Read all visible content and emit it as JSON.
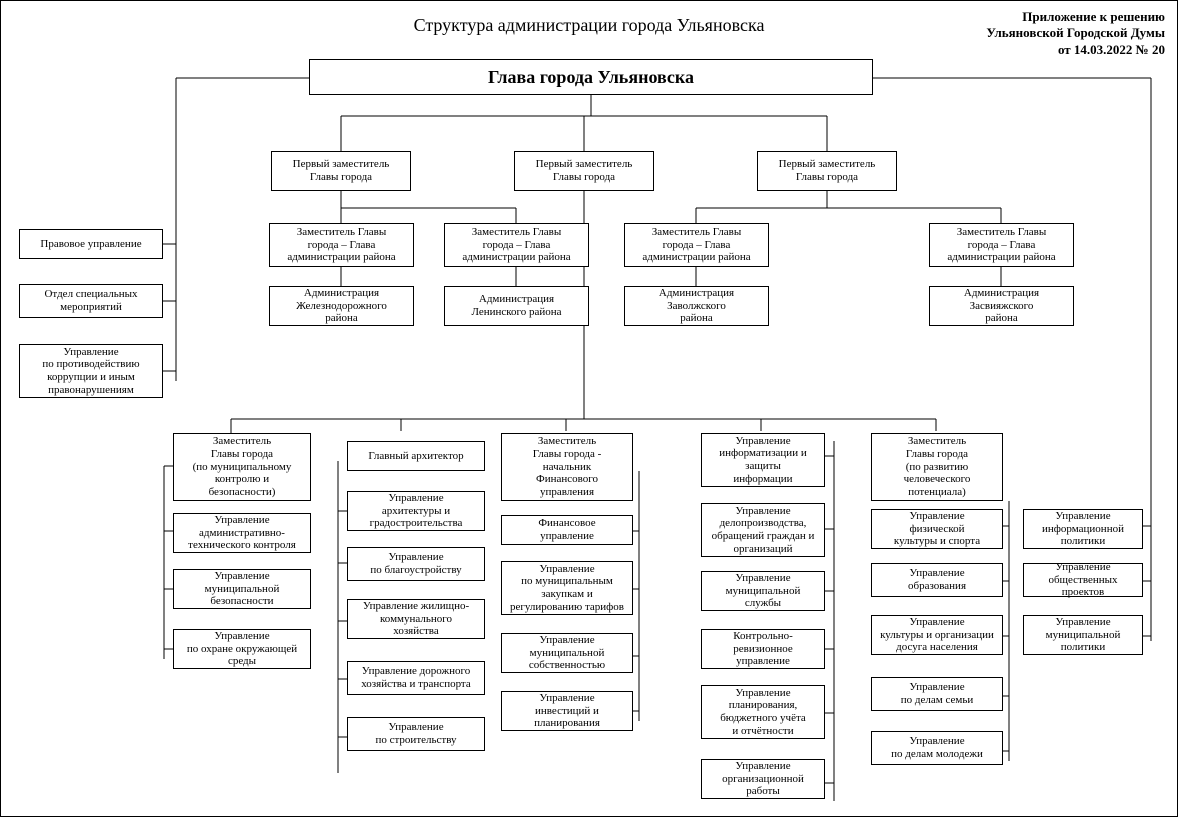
{
  "document": {
    "title": "Структура администрации города Ульяновска",
    "attachment_line1": "Приложение к решению",
    "attachment_line2": "Ульяновской Городской Думы",
    "attachment_line3": "от 14.03.2022 № 20"
  },
  "chart": {
    "type": "org-chart",
    "background_color": "#ffffff",
    "border_color": "#000000",
    "text_color": "#000000",
    "font_family": "Times New Roman",
    "node_border_width": 1,
    "connector_width": 1
  },
  "nodes": {
    "head": "Глава города Ульяновска",
    "deputy1": "Первый заместитель\nГлавы  города",
    "deputy2": "Первый заместитель\nГлавы  города",
    "deputy3": "Первый заместитель\nГлавы  города",
    "sub_rail_head": "Заместитель Главы\nгорода – Глава\nадминистрации района",
    "sub_rail_admin": "Администрация\nЖелезнодорожного\nрайона",
    "sub_lenin_head": "Заместитель Главы\nгорода – Глава\nадминистрации района",
    "sub_lenin_admin": "Администрация\nЛенинского района",
    "sub_zavolzh_head": "Заместитель Главы\nгорода – Глава\nадминистрации района",
    "sub_zavolzh_admin": "Администрация\nЗаволжского\nрайона",
    "sub_zasv_head": "Заместитель Главы\nгорода – Глава\nадминистрации района",
    "sub_zasv_admin": "Администрация\nЗасвияжского\nрайона",
    "left_legal": "Правовое управление",
    "left_spec": "Отдел специальных\nмероприятий",
    "left_anticorr": "Управление\nпо противодействию\nкоррупции и иным\nправонарушениям",
    "col1_head": "Заместитель\nГлавы  города\n(по муниципальному\nконтролю и\nбезопасности)",
    "col1_a": "Управление\nадминистративно-\nтехнического контроля",
    "col1_b": "Управление\nмуниципальной\nбезопасности",
    "col1_c": "Управление\nпо охране окружающей\nсреды",
    "col2_head": "Главный архитектор",
    "col2_a": "Управление\nархитектуры и\nградостроительства",
    "col2_b": "Управление\nпо благоустройству",
    "col2_c": "Управление жилищно-\nкоммунального\nхозяйства",
    "col2_d": "Управление дорожного\nхозяйства и транспорта",
    "col2_e": "Управление\nпо строительству",
    "col3_head": "Заместитель\nГлавы города -\nначальник\nФинансового\nуправления",
    "col3_a": "Финансовое\nуправление",
    "col3_b": "Управление\nпо муниципальным\nзакупкам и\nрегулированию тарифов",
    "col3_c": "Управление\nмуниципальной\nсобственностью",
    "col3_d": "Управление\nинвестиций и\nпланирования",
    "col4_a": "Управление\nинформатизации и\nзащиты\nинформации",
    "col4_b": "Управление\nделопроизводства,\nобращений граждан и\nорганизаций",
    "col4_c": "Управление\nмуниципальной\nслужбы",
    "col4_d": "Контрольно-\nревизионное\nуправление",
    "col4_e": "Управление\nпланирования,\nбюджетного учёта\nи отчётности",
    "col4_f": "Управление\nорганизационной\nработы",
    "col5_head": "Заместитель\nГлавы города\n(по развитию\nчеловеческого\nпотенциала)",
    "col5_a": "Управление\nфизической\nкультуры и спорта",
    "col5_b": "Управление\nобразования",
    "col5_c": "Управление\nкультуры и организации\nдосуга населения",
    "col5_d": "Управление\nпо делам семьи",
    "col5_e": "Управление\nпо делам молодежи",
    "col6_a": "Управление\nинформационной\nполитики",
    "col6_b": "Управление\nобщественных проектов",
    "col6_c": "Управление\nмуниципальной\nполитики"
  }
}
